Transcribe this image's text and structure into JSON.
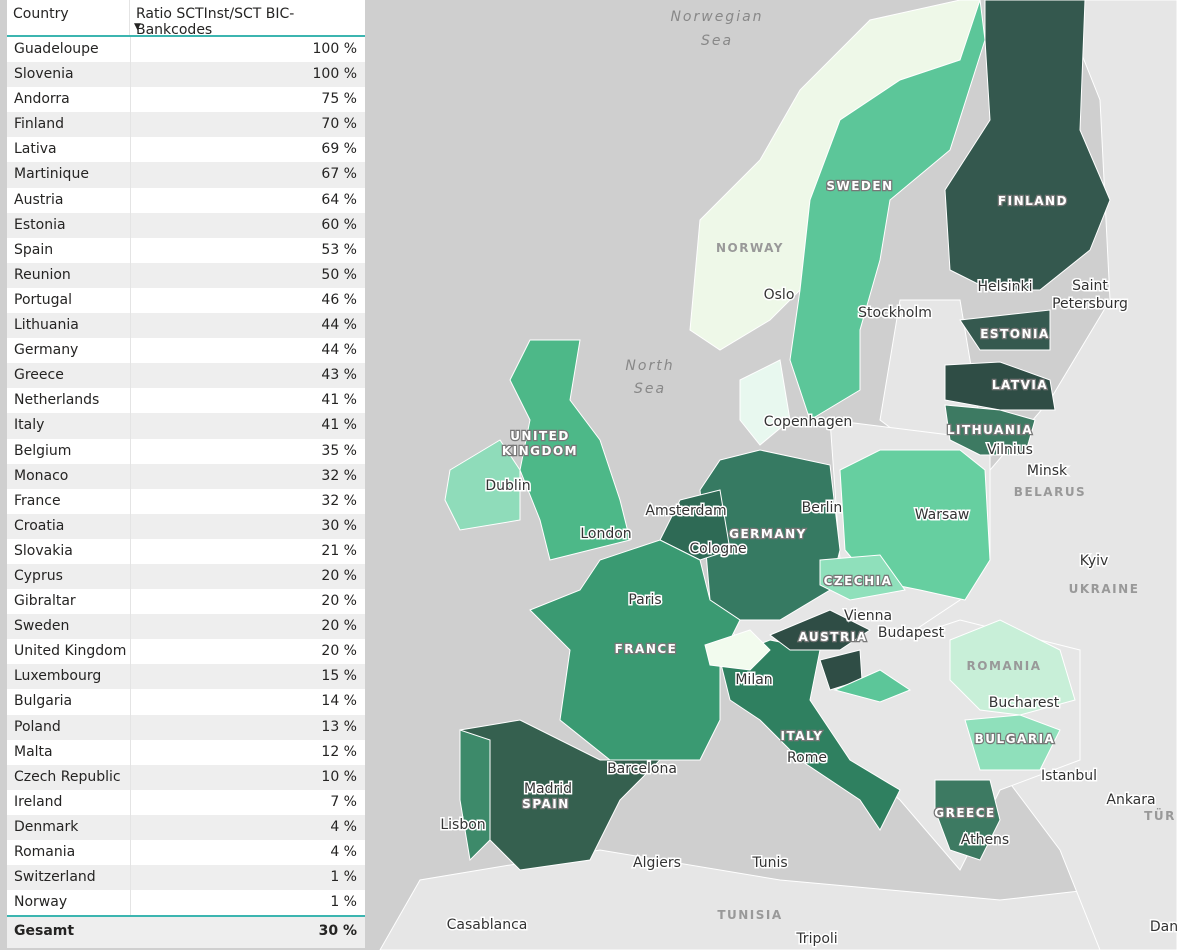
{
  "table": {
    "headers": [
      "Country",
      "Ratio SCTInst/SCT BIC-Bankcodes"
    ],
    "rows": [
      [
        "Guadeloupe",
        "100 %"
      ],
      [
        "Slovenia",
        "100 %"
      ],
      [
        "Andorra",
        "75 %"
      ],
      [
        "Finland",
        "70 %"
      ],
      [
        "Lativa",
        "69 %"
      ],
      [
        "Martinique",
        "67 %"
      ],
      [
        "Austria",
        "64 %"
      ],
      [
        "Estonia",
        "60 %"
      ],
      [
        "Spain",
        "53 %"
      ],
      [
        "Reunion",
        "50 %"
      ],
      [
        "Portugal",
        "46 %"
      ],
      [
        "Lithuania",
        "44 %"
      ],
      [
        "Germany",
        "44 %"
      ],
      [
        "Greece",
        "43 %"
      ],
      [
        "Netherlands",
        "41 %"
      ],
      [
        "Italy",
        "41 %"
      ],
      [
        "Belgium",
        "35 %"
      ],
      [
        "Monaco",
        "32 %"
      ],
      [
        "France",
        "32 %"
      ],
      [
        "Croatia",
        "30 %"
      ],
      [
        "Slovakia",
        "21 %"
      ],
      [
        "Cyprus",
        "20 %"
      ],
      [
        "Gibraltar",
        "20 %"
      ],
      [
        "Sweden",
        "20 %"
      ],
      [
        "United Kingdom",
        "20 %"
      ],
      [
        "Luxembourg",
        "15 %"
      ],
      [
        "Bulgaria",
        "14 %"
      ],
      [
        "Poland",
        "13 %"
      ],
      [
        "Malta",
        "12 %"
      ],
      [
        "Czech Republic",
        "10 %"
      ],
      [
        "Ireland",
        "7 %"
      ],
      [
        "Denmark",
        "4 %"
      ],
      [
        "Romania",
        "4 %"
      ],
      [
        "Switzerland",
        "1 %"
      ],
      [
        "Norway",
        "1 %"
      ]
    ],
    "total": [
      "Gesamt",
      "30 %"
    ]
  },
  "map": {
    "seas": [
      "Norwegian",
      "Sea",
      "North",
      "Sea"
    ],
    "countries": [
      "SWEDEN",
      "NORWAY",
      "FINLAND",
      "ESTONIA",
      "LATVIA",
      "LITHUANIA",
      "UNITED",
      "KINGDOM",
      "GERMANY",
      "CZECHIA",
      "AUSTRIA",
      "FRANCE",
      "SPAIN",
      "ITALY",
      "ROMANIA",
      "BULGARIA",
      "GREECE",
      "BELARUS",
      "UKRAINE",
      "TUNISIA",
      "TÜR"
    ],
    "cities": [
      "Oslo",
      "Stockholm",
      "Helsinki",
      "Saint",
      "Petersburg",
      "Copenhagen",
      "Vilnius",
      "Minsk",
      "Dublin",
      "London",
      "Amsterdam",
      "Berlin",
      "Cologne",
      "Warsaw",
      "Kyiv",
      "Paris",
      "Vienna",
      "Budapest",
      "Milan",
      "Bucharest",
      "Madrid",
      "Barcelona",
      "Rome",
      "Istanbul",
      "Ankara",
      "Lisbon",
      "Athens",
      "Algiers",
      "Tunis",
      "Casablanca",
      "Tripoli",
      "Dan"
    ]
  }
}
